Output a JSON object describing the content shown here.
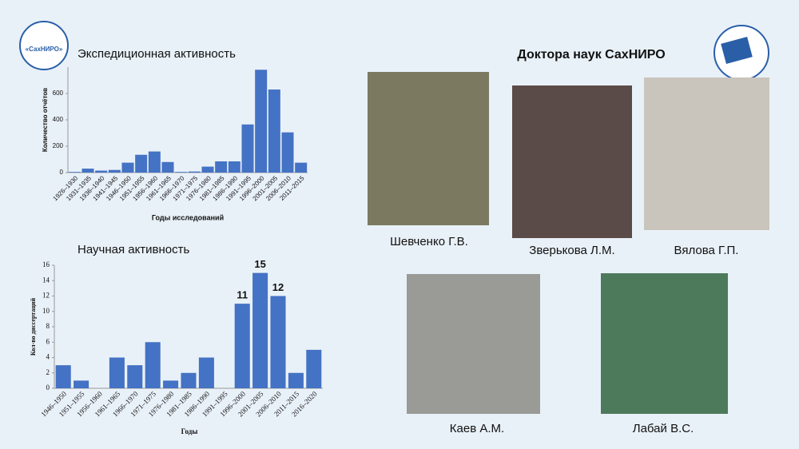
{
  "chart_data": [
    {
      "type": "bar",
      "title": "Экспедиционная активность",
      "ylabel": "Количество отчётов",
      "xlabel": "Годы исследований",
      "categories": [
        "1926–1930",
        "1931–1935",
        "1936–1940",
        "1941–1945",
        "1946–1950",
        "1951–1955",
        "1956–1960",
        "1961–1965",
        "1966–1970",
        "1971–1975",
        "1976–1980",
        "1981–1985",
        "1986–1990",
        "1991–1995",
        "1996–2000",
        "2001–2005",
        "2006–2010",
        "2011–2015"
      ],
      "values": [
        5,
        30,
        15,
        20,
        75,
        135,
        160,
        80,
        5,
        8,
        45,
        85,
        85,
        365,
        780,
        630,
        305,
        75
      ],
      "color": "#4472c4",
      "ylim": [
        0,
        800
      ],
      "yticks": [
        0,
        200,
        400,
        600
      ]
    },
    {
      "type": "bar",
      "title": "Научная активность",
      "ylabel": "Кол-во диссертаций",
      "xlabel": "Годы",
      "categories": [
        "1946–1950",
        "1951–1955",
        "1956–1960",
        "1961–1965",
        "1966–1970",
        "1971–1975",
        "1976–1980",
        "1981–1985",
        "1986–1990",
        "1991–1995",
        "1996–2000",
        "2001–2005",
        "2006–2010",
        "2011–2015",
        "2016–2020"
      ],
      "values": [
        3,
        1,
        0,
        4,
        3,
        6,
        1,
        2,
        4,
        0,
        11,
        15,
        12,
        2,
        5
      ],
      "value_labels": [
        null,
        null,
        null,
        null,
        null,
        null,
        null,
        null,
        null,
        null,
        "11",
        "15",
        "12",
        null,
        null
      ],
      "color": "#4472c4",
      "ylim": [
        0,
        16
      ],
      "yticks": [
        0,
        2,
        4,
        6,
        8,
        10,
        12,
        14,
        16
      ]
    }
  ],
  "heading": "Доктора наук СахНИРО",
  "logo": "«СахНИРО»",
  "people": [
    {
      "name": "Шевченко Г.В."
    },
    {
      "name": "Зверькова Л.М."
    },
    {
      "name": "Вялова Г.П."
    },
    {
      "name": "Каев А.М."
    },
    {
      "name": "Лабай В.С."
    }
  ]
}
